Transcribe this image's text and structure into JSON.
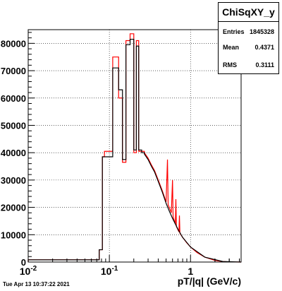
{
  "chart_data": {
    "type": "histogram",
    "title": "",
    "xlabel": "pT/|q| (GeV/c)",
    "ylabel": "",
    "x_scale": "log",
    "xlim": [
      0.01,
      4.2
    ],
    "ylim": [
      0,
      85000
    ],
    "grid": true,
    "x_tick_labels": [
      {
        "value": 0.01,
        "label": "10",
        "sup": "-2"
      },
      {
        "value": 0.1,
        "label": "10",
        "sup": "-1"
      },
      {
        "value": 1,
        "label": "1",
        "sup": ""
      }
    ],
    "y_tick_values": [
      0,
      10000,
      20000,
      30000,
      40000,
      50000,
      60000,
      70000,
      80000
    ],
    "series": [
      {
        "color": "#ff0000",
        "edges": [
          0.01,
          0.075,
          0.082,
          0.087,
          0.11,
          0.13,
          0.145,
          0.16,
          0.18,
          0.2,
          0.215,
          0.23,
          0.25,
          0.27
        ],
        "values": [
          800,
          4500,
          38500,
          40500,
          75000,
          60000,
          36500,
          81000,
          83500,
          40000,
          81000,
          40500,
          40500
        ],
        "tail": [
          {
            "x": 0.27,
            "y": 40000
          },
          {
            "x": 0.3,
            "y": 38000
          },
          {
            "x": 0.33,
            "y": 35500
          },
          {
            "x": 0.36,
            "y": 33500
          },
          {
            "x": 0.4,
            "y": 30000
          },
          {
            "x": 0.45,
            "y": 26000
          },
          {
            "x": 0.5,
            "y": 22000
          },
          {
            "x": 0.52,
            "y": 37500
          },
          {
            "x": 0.53,
            "y": 21000
          },
          {
            "x": 0.58,
            "y": 18000
          },
          {
            "x": 0.6,
            "y": 30000
          },
          {
            "x": 0.61,
            "y": 16500
          },
          {
            "x": 0.65,
            "y": 14000
          },
          {
            "x": 0.66,
            "y": 23000
          },
          {
            "x": 0.67,
            "y": 13000
          },
          {
            "x": 0.72,
            "y": 11000
          },
          {
            "x": 0.73,
            "y": 17000
          },
          {
            "x": 0.74,
            "y": 10500
          },
          {
            "x": 0.8,
            "y": 9000
          },
          {
            "x": 0.9,
            "y": 7000
          },
          {
            "x": 1.0,
            "y": 5500
          },
          {
            "x": 1.2,
            "y": 3500
          },
          {
            "x": 1.5,
            "y": 1800
          },
          {
            "x": 2.0,
            "y": 600
          },
          {
            "x": 2.5,
            "y": 200
          },
          {
            "x": 3.0,
            "y": 50
          },
          {
            "x": 4.2,
            "y": 0
          }
        ]
      },
      {
        "color": "#000000",
        "edges": [
          0.01,
          0.075,
          0.082,
          0.087,
          0.11,
          0.13,
          0.145,
          0.16,
          0.18,
          0.2,
          0.215,
          0.23,
          0.25,
          0.27
        ],
        "values": [
          800,
          4500,
          38500,
          38500,
          71000,
          63000,
          37500,
          79500,
          81500,
          41000,
          79000,
          41000,
          40000
        ],
        "tail": [
          {
            "x": 0.27,
            "y": 39500
          },
          {
            "x": 0.3,
            "y": 37500
          },
          {
            "x": 0.33,
            "y": 35000
          },
          {
            "x": 0.36,
            "y": 33000
          },
          {
            "x": 0.4,
            "y": 29500
          },
          {
            "x": 0.45,
            "y": 25500
          },
          {
            "x": 0.5,
            "y": 21500
          },
          {
            "x": 0.55,
            "y": 18500
          },
          {
            "x": 0.6,
            "y": 16000
          },
          {
            "x": 0.7,
            "y": 12000
          },
          {
            "x": 0.8,
            "y": 9000
          },
          {
            "x": 1.0,
            "y": 5500
          },
          {
            "x": 1.5,
            "y": 1800
          },
          {
            "x": 2.5,
            "y": 200
          },
          {
            "x": 4.2,
            "y": 0
          }
        ]
      }
    ]
  },
  "stats": {
    "title": "ChiSqXY_y",
    "rows": [
      {
        "key": "Entries",
        "value": "1845328"
      },
      {
        "key": "Mean",
        "value": "0.4371"
      },
      {
        "key": "RMS",
        "value": "0.3111"
      }
    ]
  },
  "footer": {
    "datestamp": "Tue Apr 13 10:37:22 2021"
  }
}
